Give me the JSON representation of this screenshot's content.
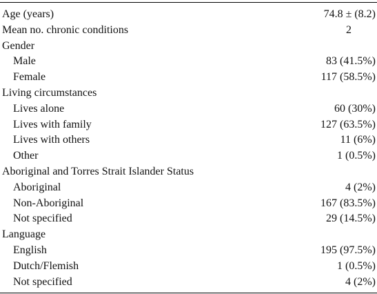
{
  "table": {
    "rows": [
      {
        "label": "Age (years)",
        "value": "74.8 ± (8.2)",
        "indent": false
      },
      {
        "label": "Mean no. chronic conditions",
        "value": "2",
        "indent": false
      },
      {
        "label": "Gender",
        "value": "",
        "indent": false
      },
      {
        "label": "Male",
        "value": "83 (41.5%)",
        "indent": true
      },
      {
        "label": "Female",
        "value": "117 (58.5%)",
        "indent": true
      },
      {
        "label": "Living circumstances",
        "value": "",
        "indent": false
      },
      {
        "label": "Lives alone",
        "value": "60 (30%)",
        "indent": true
      },
      {
        "label": "Lives with family",
        "value": "127 (63.5%)",
        "indent": true
      },
      {
        "label": "Lives with others",
        "value": "11 (6%)",
        "indent": true
      },
      {
        "label": "Other",
        "value": "1 (0.5%)",
        "indent": true
      },
      {
        "label": "Aboriginal and Torres Strait Islander Status",
        "value": "",
        "indent": false
      },
      {
        "label": "Aboriginal",
        "value": "4 (2%)",
        "indent": true
      },
      {
        "label": "Non-Aboriginal",
        "value": "167 (83.5%)",
        "indent": true
      },
      {
        "label": "Not specified",
        "value": "29 (14.5%)",
        "indent": true
      },
      {
        "label": "Language",
        "value": "",
        "indent": false
      },
      {
        "label": "English",
        "value": "195 (97.5%)",
        "indent": true
      },
      {
        "label": "Dutch/Flemish",
        "value": "1 (0.5%)",
        "indent": true
      },
      {
        "label": "Not specified",
        "value": "4 (2%)",
        "indent": true
      }
    ]
  }
}
